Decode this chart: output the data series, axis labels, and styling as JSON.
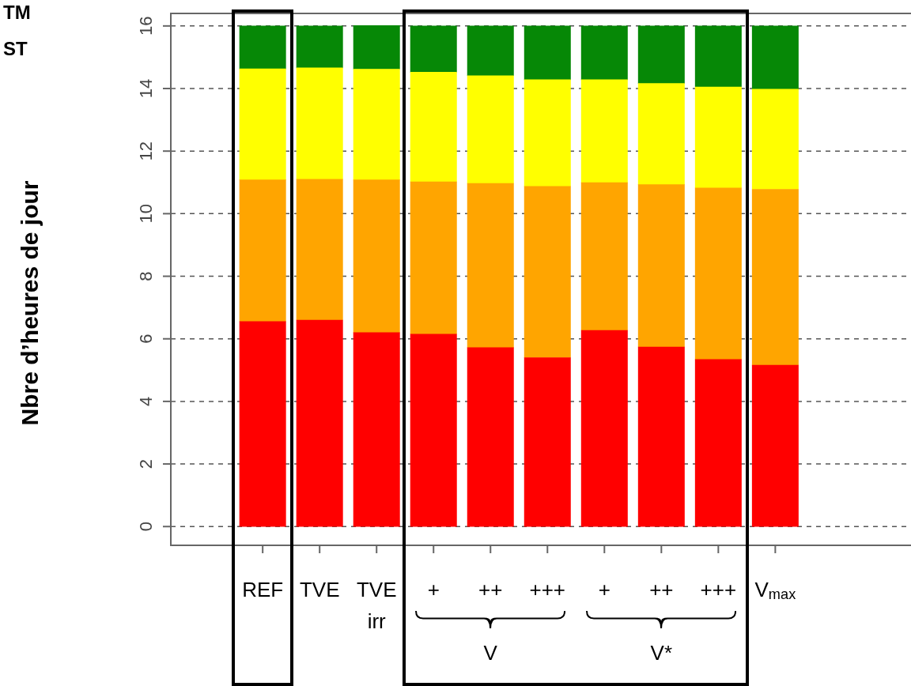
{
  "chart_data": {
    "type": "bar",
    "stacked": true,
    "ylabel": "Nbre d’heures de jour",
    "categories": [
      "REF",
      "TVE",
      "TVE irr",
      "+",
      "++",
      "+++",
      "+",
      "++",
      "+++",
      "V$_{max}$"
    ],
    "series": [
      {
        "color": "#ff0000",
        "values": [
          6.55,
          6.6,
          6.2,
          6.15,
          5.72,
          5.4,
          6.27,
          5.74,
          5.34,
          5.16
        ]
      },
      {
        "color": "#ffa500",
        "values": [
          4.53,
          4.5,
          4.88,
          4.87,
          5.25,
          5.47,
          4.72,
          5.19,
          5.48,
          5.62
        ]
      },
      {
        "color": "#ffff00",
        "values": [
          3.55,
          3.56,
          3.54,
          3.5,
          3.44,
          3.41,
          3.29,
          3.23,
          3.23,
          3.2
        ]
      },
      {
        "color": "#068806",
        "values": [
          1.37,
          1.34,
          1.39,
          1.48,
          1.59,
          1.72,
          1.72,
          1.84,
          1.95,
          2.02
        ]
      }
    ],
    "ylim": [
      -0.6,
      16.4
    ],
    "yticks": [
      0,
      2,
      4,
      6,
      8,
      10,
      12,
      14,
      16
    ],
    "grid": "y",
    "legend": false,
    "annotations": [
      "TM",
      "ST",
      "V",
      "V*"
    ]
  }
}
